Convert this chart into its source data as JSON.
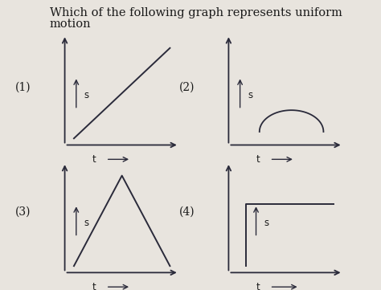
{
  "title_line1": "Which of the following graph represents uniform",
  "title_line2": "motion",
  "title_fontsize": 10.5,
  "bg_color": "#e8e4de",
  "line_color": "#2a2a3a",
  "text_color": "#1a1a1a",
  "axis_label_s": "s",
  "axis_label_t": "t",
  "graph_labels": [
    "(1)",
    "(2)",
    "(3)",
    "(4)"
  ],
  "label_fontsize": 10,
  "axis_fontsize": 8.5
}
